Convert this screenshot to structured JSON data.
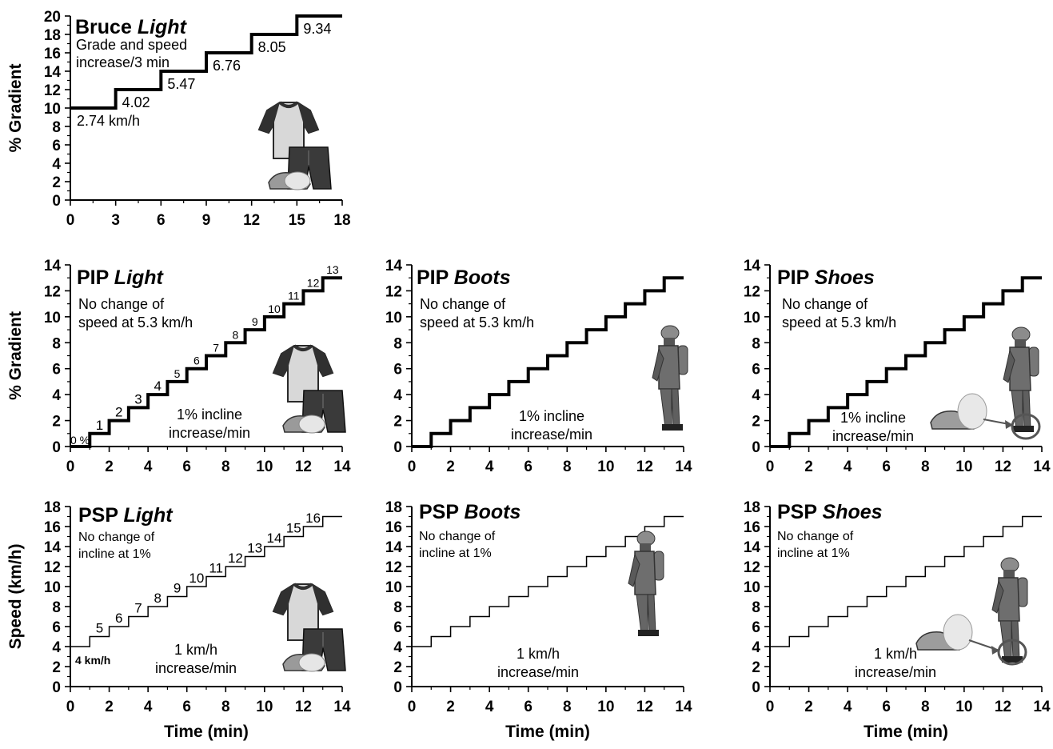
{
  "chart_data": [
    {
      "id": "bruce_light",
      "type": "line",
      "step": true,
      "line_weight": "heavy",
      "title": "Bruce",
      "title_italic": "Light",
      "ylabel": "% Gradient",
      "xlabel": "",
      "x_ticks": [
        0,
        3,
        6,
        9,
        12,
        15,
        18
      ],
      "y_ticks": [
        0,
        2,
        4,
        6,
        8,
        10,
        12,
        14,
        16,
        18,
        20
      ],
      "xlim": [
        0,
        18
      ],
      "ylim": [
        0,
        20
      ],
      "stages": [
        {
          "x0": 0,
          "x1": 3,
          "y": 10,
          "label": "2.74 km/h"
        },
        {
          "x0": 3,
          "x1": 6,
          "y": 12,
          "label": "4.02"
        },
        {
          "x0": 6,
          "x1": 9,
          "y": 14,
          "label": "5.47"
        },
        {
          "x0": 9,
          "x1": 12,
          "y": 16,
          "label": "6.76"
        },
        {
          "x0": 12,
          "x1": 15,
          "y": 18,
          "label": "8.05"
        },
        {
          "x0": 15,
          "x1": 18,
          "y": 20,
          "label": "9.34"
        }
      ],
      "notes": [
        "Grade and speed",
        "increase/3 min"
      ],
      "images": [
        "light-clothing"
      ]
    },
    {
      "id": "pip_light",
      "type": "line",
      "step": true,
      "line_weight": "heavy",
      "title": "PIP",
      "title_italic": "Light",
      "ylabel": "% Gradient",
      "xlabel": "",
      "x_ticks": [
        0,
        2,
        4,
        6,
        8,
        10,
        12,
        14
      ],
      "y_ticks": [
        0,
        2,
        4,
        6,
        8,
        10,
        12,
        14
      ],
      "xlim": [
        0,
        14
      ],
      "ylim": [
        0,
        14
      ],
      "stages": [
        {
          "x0": 0,
          "x1": 1,
          "y": 0,
          "label": "0 %"
        },
        {
          "x0": 1,
          "x1": 2,
          "y": 1,
          "label": "1"
        },
        {
          "x0": 2,
          "x1": 3,
          "y": 2,
          "label": "2"
        },
        {
          "x0": 3,
          "x1": 4,
          "y": 3,
          "label": "3"
        },
        {
          "x0": 4,
          "x1": 5,
          "y": 4,
          "label": "4"
        },
        {
          "x0": 5,
          "x1": 6,
          "y": 5,
          "label": "5"
        },
        {
          "x0": 6,
          "x1": 7,
          "y": 6,
          "label": "6"
        },
        {
          "x0": 7,
          "x1": 8,
          "y": 7,
          "label": "7"
        },
        {
          "x0": 8,
          "x1": 9,
          "y": 8,
          "label": "8"
        },
        {
          "x0": 9,
          "x1": 10,
          "y": 9,
          "label": "9"
        },
        {
          "x0": 10,
          "x1": 11,
          "y": 10,
          "label": "10"
        },
        {
          "x0": 11,
          "x1": 12,
          "y": 11,
          "label": "11"
        },
        {
          "x0": 12,
          "x1": 13,
          "y": 12,
          "label": "12"
        },
        {
          "x0": 13,
          "x1": 14,
          "y": 13,
          "label": "13"
        }
      ],
      "notes": [
        "No change of",
        "speed at 5.3 km/h"
      ],
      "notes2": [
        "1% incline",
        "increase/min"
      ],
      "images": [
        "light-clothing"
      ]
    },
    {
      "id": "pip_boots",
      "type": "line",
      "step": true,
      "line_weight": "heavy",
      "title": "PIP",
      "title_italic": "Boots",
      "ylabel": "",
      "xlabel": "",
      "x_ticks": [
        0,
        2,
        4,
        6,
        8,
        10,
        12,
        14
      ],
      "y_ticks": [
        0,
        2,
        4,
        6,
        8,
        10,
        12,
        14
      ],
      "xlim": [
        0,
        14
      ],
      "ylim": [
        0,
        14
      ],
      "stages": [
        {
          "x0": 0,
          "x1": 1,
          "y": 0
        },
        {
          "x0": 1,
          "x1": 2,
          "y": 1
        },
        {
          "x0": 2,
          "x1": 3,
          "y": 2
        },
        {
          "x0": 3,
          "x1": 4,
          "y": 3
        },
        {
          "x0": 4,
          "x1": 5,
          "y": 4
        },
        {
          "x0": 5,
          "x1": 6,
          "y": 5
        },
        {
          "x0": 6,
          "x1": 7,
          "y": 6
        },
        {
          "x0": 7,
          "x1": 8,
          "y": 7
        },
        {
          "x0": 8,
          "x1": 9,
          "y": 8
        },
        {
          "x0": 9,
          "x1": 10,
          "y": 9
        },
        {
          "x0": 10,
          "x1": 11,
          "y": 10
        },
        {
          "x0": 11,
          "x1": 12,
          "y": 11
        },
        {
          "x0": 12,
          "x1": 13,
          "y": 12
        },
        {
          "x0": 13,
          "x1": 14,
          "y": 13
        }
      ],
      "notes": [
        "No change of",
        "speed at 5.3 km/h"
      ],
      "notes2": [
        "1% incline",
        "increase/min"
      ],
      "images": [
        "firefighter"
      ]
    },
    {
      "id": "pip_shoes",
      "type": "line",
      "step": true,
      "line_weight": "heavy",
      "title": "PIP",
      "title_italic": "Shoes",
      "ylabel": "",
      "xlabel": "",
      "x_ticks": [
        0,
        2,
        4,
        6,
        8,
        10,
        12,
        14
      ],
      "y_ticks": [
        0,
        2,
        4,
        6,
        8,
        10,
        12,
        14
      ],
      "xlim": [
        0,
        14
      ],
      "ylim": [
        0,
        14
      ],
      "stages": [
        {
          "x0": 0,
          "x1": 1,
          "y": 0
        },
        {
          "x0": 1,
          "x1": 2,
          "y": 1
        },
        {
          "x0": 2,
          "x1": 3,
          "y": 2
        },
        {
          "x0": 3,
          "x1": 4,
          "y": 3
        },
        {
          "x0": 4,
          "x1": 5,
          "y": 4
        },
        {
          "x0": 5,
          "x1": 6,
          "y": 5
        },
        {
          "x0": 6,
          "x1": 7,
          "y": 6
        },
        {
          "x0": 7,
          "x1": 8,
          "y": 7
        },
        {
          "x0": 8,
          "x1": 9,
          "y": 8
        },
        {
          "x0": 9,
          "x1": 10,
          "y": 9
        },
        {
          "x0": 10,
          "x1": 11,
          "y": 10
        },
        {
          "x0": 11,
          "x1": 12,
          "y": 11
        },
        {
          "x0": 12,
          "x1": 13,
          "y": 12
        },
        {
          "x0": 13,
          "x1": 14,
          "y": 13
        }
      ],
      "notes": [
        "No change of",
        "speed at 5.3 km/h"
      ],
      "notes2": [
        "1% incline",
        "increase/min"
      ],
      "images": [
        "firefighter",
        "running-shoe"
      ]
    },
    {
      "id": "psp_light",
      "type": "line",
      "step": true,
      "line_weight": "thin",
      "title": "PSP",
      "title_italic": "Light",
      "ylabel": "Speed (km/h)",
      "xlabel": "Time (min)",
      "x_ticks": [
        0,
        2,
        4,
        6,
        8,
        10,
        12,
        14
      ],
      "y_ticks": [
        0,
        2,
        4,
        6,
        8,
        10,
        12,
        14,
        16,
        18
      ],
      "xlim": [
        0,
        14
      ],
      "ylim": [
        0,
        18
      ],
      "stages": [
        {
          "x0": 0,
          "x1": 1,
          "y": 4,
          "label": "4 km/h"
        },
        {
          "x0": 1,
          "x1": 2,
          "y": 5,
          "label": "5"
        },
        {
          "x0": 2,
          "x1": 3,
          "y": 6,
          "label": "6"
        },
        {
          "x0": 3,
          "x1": 4,
          "y": 7,
          "label": "7"
        },
        {
          "x0": 4,
          "x1": 5,
          "y": 8,
          "label": "8"
        },
        {
          "x0": 5,
          "x1": 6,
          "y": 9,
          "label": "9"
        },
        {
          "x0": 6,
          "x1": 7,
          "y": 10,
          "label": "10"
        },
        {
          "x0": 7,
          "x1": 8,
          "y": 11,
          "label": "11"
        },
        {
          "x0": 8,
          "x1": 9,
          "y": 12,
          "label": "12"
        },
        {
          "x0": 9,
          "x1": 10,
          "y": 13,
          "label": "13"
        },
        {
          "x0": 10,
          "x1": 11,
          "y": 14,
          "label": "14"
        },
        {
          "x0": 11,
          "x1": 12,
          "y": 15,
          "label": "15"
        },
        {
          "x0": 12,
          "x1": 13,
          "y": 16,
          "label": "16"
        },
        {
          "x0": 13,
          "x1": 14,
          "y": 17
        }
      ],
      "notes": [
        "No change of",
        "incline at 1%"
      ],
      "notes2": [
        "1 km/h",
        "increase/min"
      ],
      "images": [
        "light-clothing"
      ]
    },
    {
      "id": "psp_boots",
      "type": "line",
      "step": true,
      "line_weight": "thin",
      "title": "PSP",
      "title_italic": "Boots",
      "ylabel": "",
      "xlabel": "Time (min)",
      "x_ticks": [
        0,
        2,
        4,
        6,
        8,
        10,
        12,
        14
      ],
      "y_ticks": [
        0,
        2,
        4,
        6,
        8,
        10,
        12,
        14,
        16,
        18
      ],
      "xlim": [
        0,
        14
      ],
      "ylim": [
        0,
        18
      ],
      "stages": [
        {
          "x0": 0,
          "x1": 1,
          "y": 4
        },
        {
          "x0": 1,
          "x1": 2,
          "y": 5
        },
        {
          "x0": 2,
          "x1": 3,
          "y": 6
        },
        {
          "x0": 3,
          "x1": 4,
          "y": 7
        },
        {
          "x0": 4,
          "x1": 5,
          "y": 8
        },
        {
          "x0": 5,
          "x1": 6,
          "y": 9
        },
        {
          "x0": 6,
          "x1": 7,
          "y": 10
        },
        {
          "x0": 7,
          "x1": 8,
          "y": 11
        },
        {
          "x0": 8,
          "x1": 9,
          "y": 12
        },
        {
          "x0": 9,
          "x1": 10,
          "y": 13
        },
        {
          "x0": 10,
          "x1": 11,
          "y": 14
        },
        {
          "x0": 11,
          "x1": 12,
          "y": 15
        },
        {
          "x0": 12,
          "x1": 13,
          "y": 16
        },
        {
          "x0": 13,
          "x1": 14,
          "y": 17
        }
      ],
      "notes": [
        "No change of",
        "incline at 1%"
      ],
      "notes2": [
        "1 km/h",
        "increase/min"
      ],
      "images": [
        "firefighter"
      ]
    },
    {
      "id": "psp_shoes",
      "type": "line",
      "step": true,
      "line_weight": "thin",
      "title": "PSP",
      "title_italic": "Shoes",
      "ylabel": "",
      "xlabel": "Time (min)",
      "x_ticks": [
        0,
        2,
        4,
        6,
        8,
        10,
        12,
        14
      ],
      "y_ticks": [
        0,
        2,
        4,
        6,
        8,
        10,
        12,
        14,
        16,
        18
      ],
      "xlim": [
        0,
        14
      ],
      "ylim": [
        0,
        18
      ],
      "stages": [
        {
          "x0": 0,
          "x1": 1,
          "y": 4
        },
        {
          "x0": 1,
          "x1": 2,
          "y": 5
        },
        {
          "x0": 2,
          "x1": 3,
          "y": 6
        },
        {
          "x0": 3,
          "x1": 4,
          "y": 7
        },
        {
          "x0": 4,
          "x1": 5,
          "y": 8
        },
        {
          "x0": 5,
          "x1": 6,
          "y": 9
        },
        {
          "x0": 6,
          "x1": 7,
          "y": 10
        },
        {
          "x0": 7,
          "x1": 8,
          "y": 11
        },
        {
          "x0": 8,
          "x1": 9,
          "y": 12
        },
        {
          "x0": 9,
          "x1": 10,
          "y": 13
        },
        {
          "x0": 10,
          "x1": 11,
          "y": 14
        },
        {
          "x0": 11,
          "x1": 12,
          "y": 15
        },
        {
          "x0": 12,
          "x1": 13,
          "y": 16
        },
        {
          "x0": 13,
          "x1": 14,
          "y": 17
        }
      ],
      "notes": [
        "No change of",
        "incline at 1%"
      ],
      "notes2": [
        "1 km/h",
        "increase/min"
      ],
      "images": [
        "firefighter",
        "running-shoe"
      ]
    }
  ]
}
